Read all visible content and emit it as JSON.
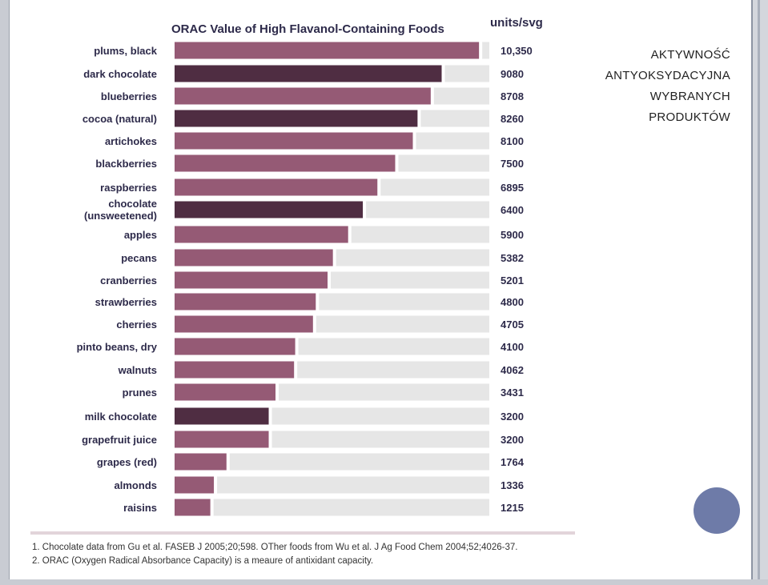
{
  "chart_data": {
    "type": "bar",
    "orientation": "horizontal",
    "title": "ORAC Value of High Flavanol-Containing Foods",
    "value_header": "units/svg",
    "xlim": [
      0,
      10700
    ],
    "categories": [
      {
        "lines": [
          "plums, black"
        ]
      },
      {
        "lines": [
          "dark chocolate"
        ]
      },
      {
        "lines": [
          "blueberries"
        ]
      },
      {
        "lines": [
          "cocoa (natural)"
        ]
      },
      {
        "lines": [
          "artichokes"
        ]
      },
      {
        "lines": [
          "blackberries"
        ]
      },
      {
        "lines": [
          "raspberries"
        ]
      },
      {
        "lines": [
          "chocolate",
          "(unsweetened)"
        ]
      },
      {
        "lines": [
          "apples"
        ]
      },
      {
        "lines": [
          "pecans"
        ]
      },
      {
        "lines": [
          "cranberries"
        ]
      },
      {
        "lines": [
          "strawberries"
        ]
      },
      {
        "lines": [
          "cherries"
        ]
      },
      {
        "lines": [
          "pinto beans, dry"
        ]
      },
      {
        "lines": [
          "walnuts"
        ]
      },
      {
        "lines": [
          "prunes"
        ]
      },
      {
        "lines": [
          "milk chocolate"
        ]
      },
      {
        "lines": [
          "grapefruit juice"
        ]
      },
      {
        "lines": [
          "grapes (red)"
        ]
      },
      {
        "lines": [
          "almonds"
        ]
      },
      {
        "lines": [
          "raisins"
        ]
      }
    ],
    "values": [
      10350,
      9080,
      8708,
      8260,
      8100,
      7500,
      6895,
      6400,
      5900,
      5382,
      5201,
      4800,
      4705,
      4100,
      4062,
      3431,
      3200,
      3200,
      1764,
      1336,
      1215
    ],
    "value_labels": [
      "10,350",
      "9080",
      "8708",
      "8260",
      "8100",
      "7500",
      "6895",
      "6400",
      "5900",
      "5382",
      "5201",
      "4800",
      "4705",
      "4100",
      "4062",
      "3431",
      "3200",
      "3200",
      "1764",
      "1336",
      "1215"
    ],
    "chocolate_highlight": [
      false,
      true,
      false,
      true,
      false,
      false,
      false,
      true,
      false,
      false,
      false,
      false,
      false,
      false,
      false,
      false,
      true,
      false,
      false,
      false,
      false
    ],
    "colors": {
      "bar": "#955a75",
      "bar_chocolate": "#4f2d42",
      "track": "#e6e6e6",
      "text": "#2d2a4a"
    }
  },
  "side_title": [
    "AKTYWNOŚĆ",
    "ANTYOKSYDACYJNA",
    "WYBRANYCH",
    "PRODUKTÓW"
  ],
  "footnotes": [
    "1. Chocolate data from Gu et al. FASEB J 2005;20;598. OTher foods from Wu et al. J Ag Food Chem 2004;52;4026-37.",
    "2. ORAC (Oxygen Radical Absorbance Capacity) is a meaure of antixidant capacity."
  ]
}
